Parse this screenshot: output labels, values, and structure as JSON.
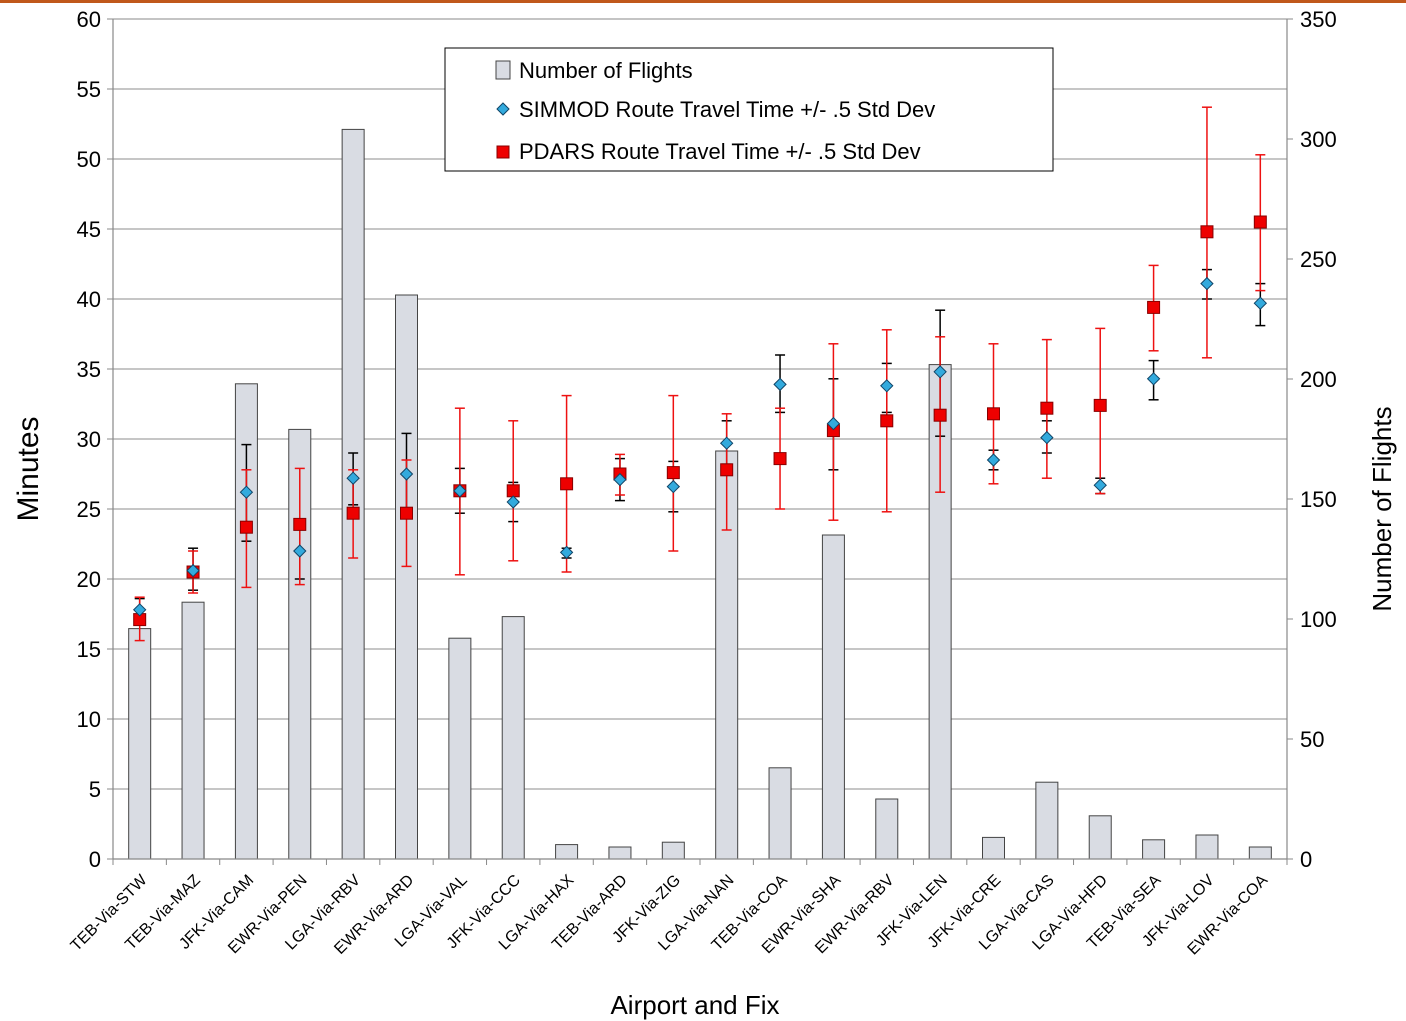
{
  "chart_data": {
    "type": "bar",
    "xlabel": "Airport and Fix",
    "ylabel": "Minutes",
    "y2label": "Number of Flights",
    "ylim": [
      0,
      60
    ],
    "y2lim": [
      0,
      350
    ],
    "yticks": [
      "0",
      "5",
      "10",
      "15",
      "20",
      "25",
      "30",
      "35",
      "40",
      "45",
      "50",
      "55",
      "60"
    ],
    "y2ticks": [
      "0",
      "50",
      "100",
      "150",
      "200",
      "250",
      "300",
      "350"
    ],
    "grid": true,
    "legend_position": "top-center",
    "colors": {
      "bar_fill": "#d9dce3",
      "bar_stroke": "#444444",
      "simmod_marker": "#33aadd",
      "simmod_error": "#000000",
      "pdars_marker": "#ee0000",
      "pdars_error": "#ee1111",
      "top_rule": "#c0581b"
    },
    "categories": [
      "TEB-Via-STW",
      "TEB-Via-MAZ",
      "JFK-Via-CAM",
      "EWR-Via-PEN",
      "LGA-Via-RBV",
      "EWR-Via-ARD",
      "LGA-Via-VAL",
      "JFK-Via-CCC",
      "LGA-Via-HAX",
      "TEB-Via-ARD",
      "JFK-Via-ZIG",
      "LGA-Via-NAN",
      "TEB-Via-COA",
      "EWR-Via-SHA",
      "EWR-Via-RBV",
      "JFK-Via-LEN",
      "JFK-Via-CRE",
      "LGA-Via-CAS",
      "LGA-Via-HFD",
      "TEB-Via-SEA",
      "JFK-Via-LOV",
      "EWR-Via-COA"
    ],
    "series": [
      {
        "name": "Number of Flights",
        "type": "bar",
        "axis": "right",
        "values": [
          96,
          107,
          198,
          179,
          304,
          235,
          92,
          101,
          6,
          5,
          7,
          170,
          38,
          135,
          25,
          206,
          9,
          32,
          18,
          8,
          10,
          5
        ]
      },
      {
        "name": "SIMMOD Route Travel Time +/- .5 Std Dev",
        "type": "scatter",
        "axis": "left",
        "values": [
          17.8,
          20.6,
          26.2,
          22.0,
          27.2,
          27.5,
          26.3,
          25.5,
          21.9,
          27.1,
          26.6,
          29.7,
          33.9,
          31.1,
          33.8,
          34.8,
          28.5,
          30.1,
          26.7,
          34.3,
          41.1,
          39.7
        ],
        "error_low": [
          17.2,
          19.2,
          22.7,
          20.0,
          25.3,
          24.6,
          24.7,
          24.1,
          21.5,
          25.6,
          24.8,
          28.2,
          31.9,
          27.8,
          31.9,
          30.2,
          27.8,
          29.0,
          26.1,
          32.8,
          40.0,
          38.1
        ],
        "error_high": [
          18.6,
          22.2,
          29.6,
          24.1,
          29.0,
          30.4,
          27.9,
          26.9,
          22.2,
          28.6,
          28.4,
          31.3,
          36.0,
          34.3,
          35.4,
          39.2,
          29.2,
          31.3,
          27.2,
          35.6,
          42.1,
          41.1
        ]
      },
      {
        "name": "PDARS Route Travel Time +/- .5 Std Dev",
        "type": "scatter",
        "axis": "left",
        "values": [
          17.1,
          20.5,
          23.7,
          23.9,
          24.7,
          24.7,
          26.3,
          26.3,
          26.8,
          27.5,
          27.6,
          27.8,
          28.6,
          30.6,
          31.3,
          31.7,
          31.8,
          32.2,
          32.4,
          39.4,
          44.8,
          45.5
        ],
        "error_low": [
          15.6,
          19.0,
          19.4,
          19.6,
          21.5,
          20.9,
          20.3,
          21.3,
          20.5,
          26.0,
          22.0,
          23.5,
          25.0,
          24.2,
          24.8,
          26.2,
          26.8,
          27.2,
          26.1,
          36.3,
          35.8,
          40.6
        ],
        "error_high": [
          18.7,
          22.0,
          27.8,
          27.9,
          27.8,
          28.5,
          32.2,
          31.3,
          33.1,
          28.9,
          33.1,
          31.8,
          32.2,
          36.8,
          37.8,
          37.3,
          36.8,
          37.1,
          37.9,
          42.4,
          53.7,
          50.3
        ]
      }
    ]
  }
}
